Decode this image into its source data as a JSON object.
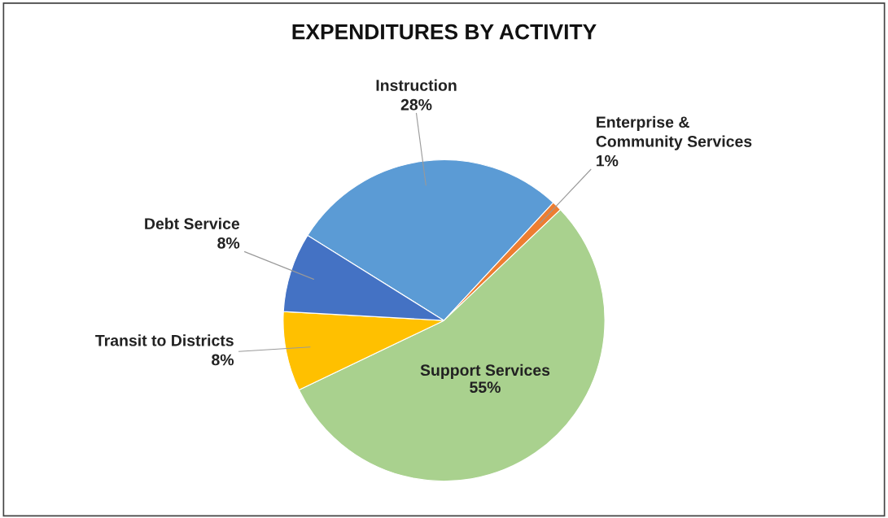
{
  "chart_data": {
    "type": "pie",
    "title": "EXPENDITURES BY ACTIVITY",
    "categories": [
      "Instruction",
      "Enterprise & Community Services",
      "Support Services",
      "Transit to Districts",
      "Debt Service"
    ],
    "values": [
      28,
      1,
      55,
      8,
      8
    ],
    "value_labels": [
      "28%",
      "1%",
      "55%",
      "8%",
      "8%"
    ],
    "colors": [
      "#5b9bd5",
      "#ed7d31",
      "#a9d18e",
      "#ffc000",
      "#4472c4"
    ],
    "legend": false
  }
}
